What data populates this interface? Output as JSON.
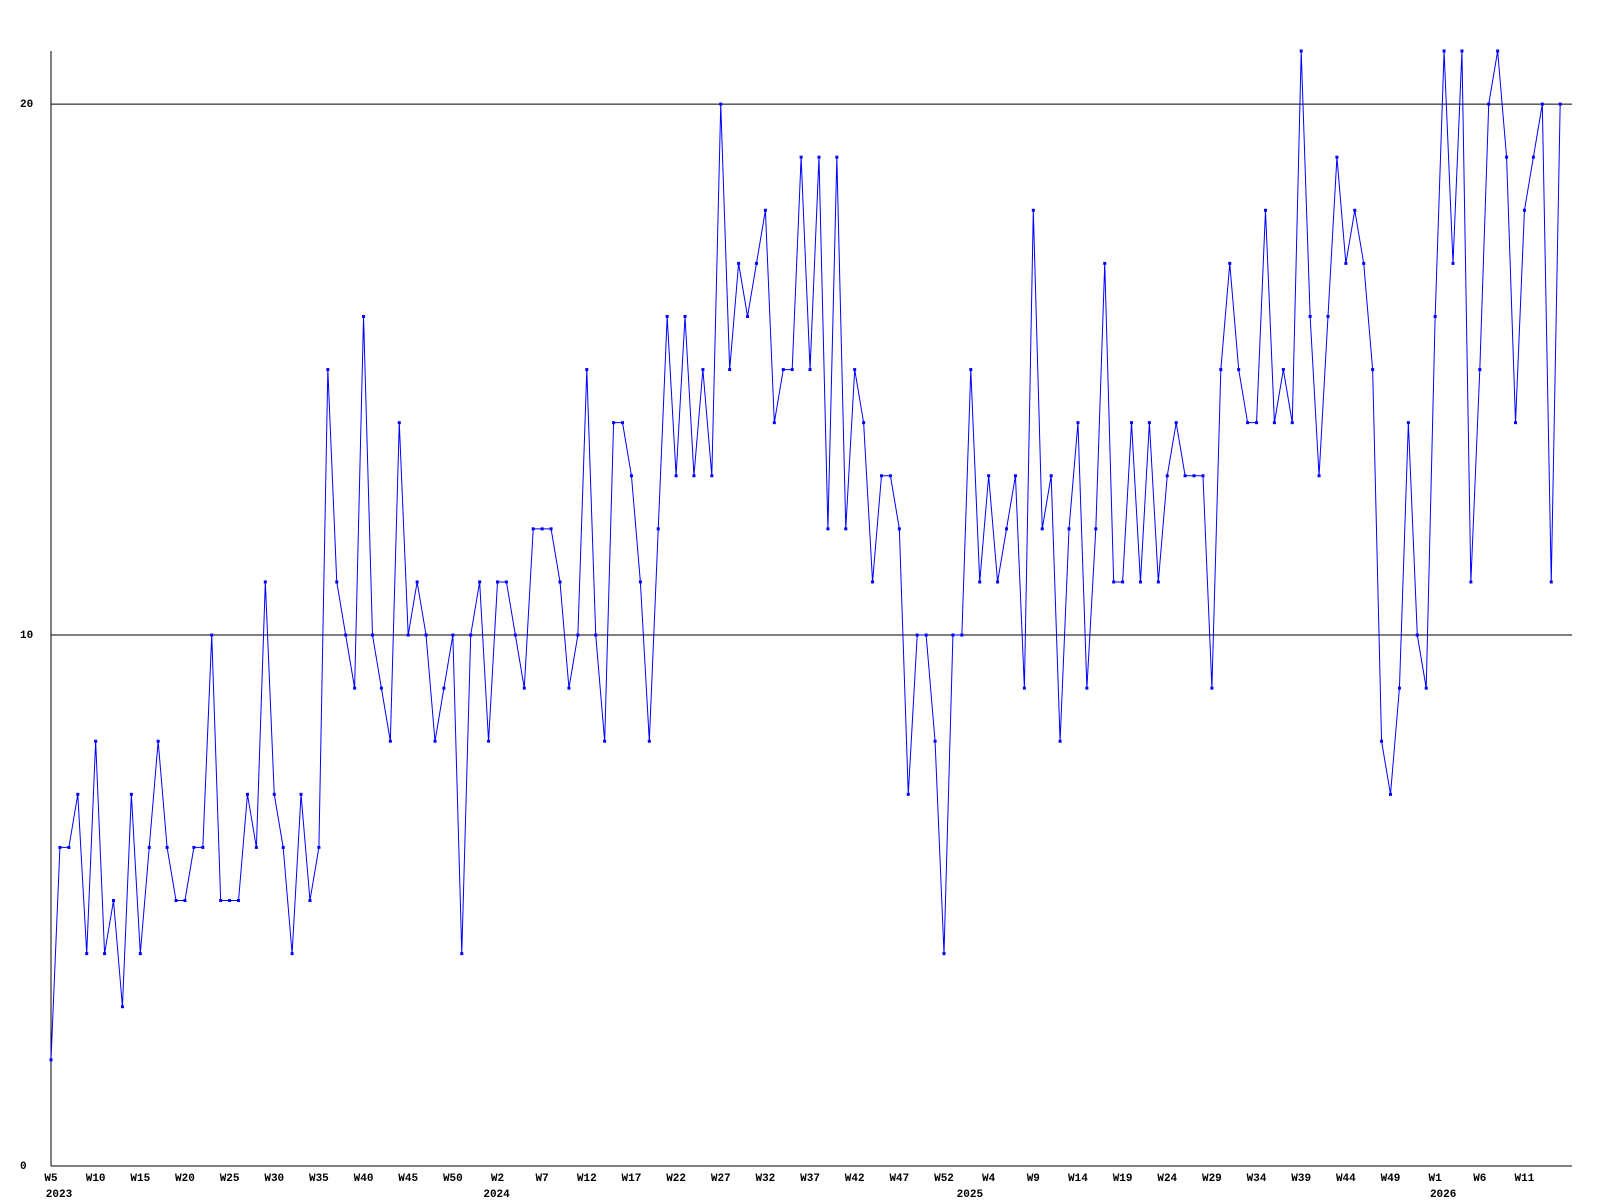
{
  "chart_data": {
    "type": "line",
    "categories": [
      "W5",
      null,
      null,
      null,
      null,
      "W10",
      null,
      null,
      null,
      null,
      "W15",
      null,
      null,
      null,
      null,
      "W20",
      null,
      null,
      null,
      null,
      "W25",
      null,
      null,
      null,
      null,
      "W30",
      null,
      null,
      null,
      null,
      "W35",
      null,
      null,
      null,
      null,
      "W40",
      null,
      null,
      null,
      null,
      "W45",
      null,
      null,
      null,
      null,
      "W50",
      null,
      null,
      null,
      null,
      "W2",
      null,
      null,
      null,
      null,
      "W7",
      null,
      null,
      null,
      null,
      "W12",
      null,
      null,
      null,
      null,
      "W17",
      null,
      null,
      null,
      null,
      "W22",
      null,
      null,
      null,
      null,
      "W27",
      null,
      null,
      null,
      null,
      "W32",
      null,
      null,
      null,
      null,
      "W37",
      null,
      null,
      null,
      null,
      "W42",
      null,
      null,
      null,
      null,
      "W47",
      null,
      null,
      null,
      null,
      "W52",
      null,
      null,
      null,
      null,
      "W4",
      null,
      null,
      null,
      null,
      "W9",
      null,
      null,
      null,
      null,
      "W14",
      null,
      null,
      null,
      null,
      "W19",
      null,
      null,
      null,
      null,
      "W24",
      null,
      null,
      null,
      null,
      "W29",
      null,
      null,
      null,
      null,
      "W34",
      null,
      null,
      null,
      null,
      "W39",
      null,
      null,
      null,
      null,
      "W44",
      null,
      null,
      null,
      null,
      "W49",
      null,
      null,
      null,
      null,
      "W1",
      null,
      null,
      null,
      null,
      "W6",
      null,
      null,
      null,
      null,
      "W11",
      null,
      null,
      null,
      null
    ],
    "category_years": [
      "2023",
      null,
      null,
      null,
      null,
      null,
      null,
      null,
      null,
      null,
      null,
      null,
      null,
      null,
      null,
      null,
      null,
      null,
      null,
      null,
      null,
      null,
      null,
      null,
      null,
      null,
      null,
      null,
      null,
      null,
      null,
      null,
      null,
      null,
      null,
      null,
      null,
      null,
      null,
      null,
      null,
      null,
      null,
      null,
      null,
      null,
      null,
      null,
      null,
      "2024",
      null,
      null,
      null,
      null,
      null,
      null,
      null,
      null,
      null,
      null,
      null,
      null,
      null,
      null,
      null,
      null,
      null,
      null,
      null,
      null,
      null,
      null,
      null,
      null,
      null,
      null,
      null,
      null,
      null,
      null,
      null,
      null,
      null,
      null,
      null,
      null,
      null,
      null,
      null,
      null,
      null,
      null,
      null,
      null,
      null,
      null,
      null,
      null,
      null,
      null,
      null,
      null,
      "2025",
      null,
      null,
      null,
      null,
      null,
      null,
      null,
      null,
      null,
      null,
      null,
      null,
      null,
      null,
      null,
      null,
      null,
      null,
      null,
      null,
      null,
      null,
      null,
      null,
      null,
      null,
      null,
      null,
      null,
      null,
      null,
      null,
      null,
      null,
      null,
      null,
      null,
      null,
      null,
      null,
      null,
      null,
      null,
      null,
      null,
      null,
      null,
      null,
      null,
      null,
      null,
      null,
      "2026",
      null,
      null,
      null,
      null,
      null,
      null,
      null,
      null,
      null,
      null,
      null,
      null,
      null,
      null
    ],
    "series": [
      {
        "color": "#0000ff",
        "values": [
          2,
          6,
          6,
          7,
          4,
          8,
          4,
          5,
          3,
          7,
          4,
          6,
          8,
          6,
          5,
          5,
          6,
          6,
          10,
          5,
          5,
          5,
          7,
          6,
          11,
          7,
          6,
          4,
          7,
          5,
          6,
          15,
          11,
          10,
          9,
          16,
          10,
          9,
          8,
          14,
          10,
          11,
          10,
          8,
          9,
          10,
          4,
          10,
          11,
          8,
          11,
          11,
          10,
          9,
          12,
          12,
          12,
          11,
          9,
          10,
          15,
          10,
          8,
          14,
          14,
          13,
          11,
          8,
          12,
          16,
          13,
          16,
          13,
          15,
          13,
          20,
          15,
          17,
          16,
          17,
          18,
          14,
          15,
          15,
          19,
          15,
          19,
          12,
          19,
          12,
          15,
          14,
          11,
          13,
          13,
          12,
          7,
          10,
          10,
          8,
          4,
          10,
          10,
          15,
          11,
          13,
          11,
          12,
          13,
          9,
          18,
          12,
          13,
          8,
          12,
          14,
          9,
          12,
          17,
          11,
          11,
          14,
          11,
          14,
          11,
          13,
          14,
          13,
          13,
          13,
          9,
          15,
          17,
          15,
          14,
          14,
          18,
          14,
          15,
          14,
          21,
          16,
          13,
          16,
          19,
          17,
          18,
          17,
          15,
          8,
          7,
          9,
          14,
          10,
          9,
          16,
          21,
          17,
          21,
          11,
          15,
          20,
          21,
          19,
          14,
          18,
          19,
          20,
          11,
          20
        ]
      }
    ],
    "ylim": [
      0,
      21
    ],
    "yticks": [
      0,
      10,
      20
    ],
    "grid": true
  }
}
